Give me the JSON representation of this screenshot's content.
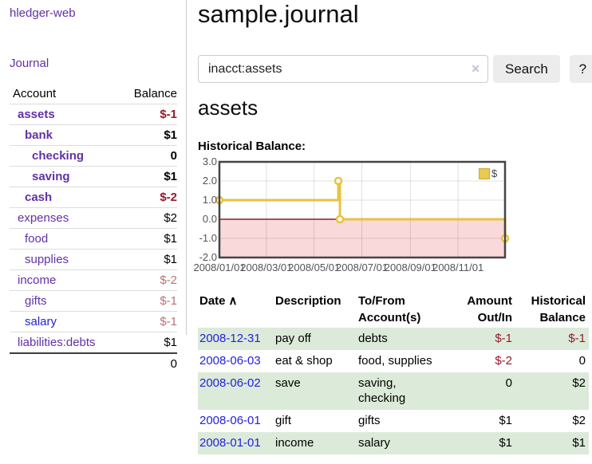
{
  "app": {
    "brand": "hledger-web"
  },
  "nav": {
    "journal": "Journal"
  },
  "sidebar": {
    "accounts": {
      "col_account": "Account",
      "col_balance": "Balance",
      "rows": [
        {
          "name": "assets",
          "balance": "$-1",
          "depth": 1,
          "bold": true,
          "balance_tone": "negative-strong",
          "name_color": "purple"
        },
        {
          "name": "bank",
          "balance": "$1",
          "depth": 2,
          "bold": true,
          "balance_tone": "normal",
          "name_color": "purple"
        },
        {
          "name": "checking",
          "balance": "0",
          "depth": 3,
          "bold": true,
          "balance_tone": "normal",
          "name_color": "purple"
        },
        {
          "name": "saving",
          "balance": "$1",
          "depth": 3,
          "bold": true,
          "balance_tone": "normal",
          "name_color": "purple"
        },
        {
          "name": "cash",
          "balance": "$-2",
          "depth": 2,
          "bold": true,
          "balance_tone": "negative-strong",
          "name_color": "purple"
        },
        {
          "name": "expenses",
          "balance": "$2",
          "depth": 1,
          "bold": false,
          "balance_tone": "normal",
          "name_color": "purple"
        },
        {
          "name": "food",
          "balance": "$1",
          "depth": 2,
          "bold": false,
          "balance_tone": "normal",
          "name_color": "purple"
        },
        {
          "name": "supplies",
          "balance": "$1",
          "depth": 2,
          "bold": false,
          "balance_tone": "normal",
          "name_color": "purple"
        },
        {
          "name": "income",
          "balance": "$-2",
          "depth": 1,
          "bold": false,
          "balance_tone": "negative-muted",
          "name_color": "purple"
        },
        {
          "name": "gifts",
          "balance": "$-1",
          "depth": 2,
          "bold": false,
          "balance_tone": "negative-muted",
          "name_color": "purple"
        },
        {
          "name": "salary",
          "balance": "$-1",
          "depth": 2,
          "bold": false,
          "balance_tone": "negative-muted",
          "name_color": "blue"
        },
        {
          "name": "liabilities:debts",
          "balance": "$1",
          "depth": 1,
          "bold": false,
          "balance_tone": "normal",
          "name_color": "purple"
        }
      ],
      "total": "0"
    }
  },
  "header": {
    "title": "sample.journal"
  },
  "search": {
    "value": "inacct:assets",
    "clear_icon": "✕",
    "search_button": "Search",
    "help_button": "?"
  },
  "account_page": {
    "heading": "assets",
    "section_label": "Historical Balance:"
  },
  "chart_data": {
    "type": "line",
    "title": "Historical Balance",
    "step": true,
    "x_range": [
      "2008-01-01",
      "2008-12-31"
    ],
    "ylim": [
      -2,
      3
    ],
    "ytick_labels": [
      "3.0",
      "2.0",
      "1.0",
      "0.0",
      "-1.0",
      "-2.0"
    ],
    "ytick_values": [
      3,
      2,
      1,
      0,
      -1,
      -2
    ],
    "xticks": [
      {
        "label": "2008/01/01",
        "date": "2008-01-01"
      },
      {
        "label": "2008/03/01",
        "date": "2008-03-01"
      },
      {
        "label": "2008/05/01",
        "date": "2008-05-01"
      },
      {
        "label": "2008/07/01",
        "date": "2008-07-01"
      },
      {
        "label": "2008/09/01",
        "date": "2008-09-01"
      },
      {
        "label": "2008/11/01",
        "date": "2008-11-01"
      }
    ],
    "series": [
      {
        "name": "$",
        "color": "#e9c23f",
        "points": [
          {
            "date": "2008-01-01",
            "value": 1
          },
          {
            "date": "2008-06-01",
            "value": 2
          },
          {
            "date": "2008-06-03",
            "value": 0
          },
          {
            "date": "2008-12-31",
            "value": -1
          }
        ]
      }
    ],
    "legend": {
      "label": "$",
      "position": "top-right"
    },
    "negative_region_color": "#f9d9d9",
    "zero_line_color": "#8b2020",
    "grid": true
  },
  "register": {
    "columns": [
      {
        "label": "Date",
        "sort": "∧"
      },
      {
        "label": "Description"
      },
      {
        "label": "To/From Account(s)"
      },
      {
        "label": "Amount Out/In"
      },
      {
        "label": "Historical Balance"
      }
    ],
    "rows": [
      {
        "date": "2008-12-31",
        "description": "pay off",
        "accounts": [
          "debts"
        ],
        "amount": "$-1",
        "amount_negative": true,
        "balance": "$-1",
        "balance_negative": true
      },
      {
        "date": "2008-06-03",
        "description": "eat & shop",
        "accounts": [
          "food, supplies"
        ],
        "amount": "$-2",
        "amount_negative": true,
        "balance": "0",
        "balance_negative": false
      },
      {
        "date": "2008-06-02",
        "description": "save",
        "accounts": [
          "saving,",
          "checking"
        ],
        "amount": "0",
        "amount_negative": false,
        "balance": "$2",
        "balance_negative": false
      },
      {
        "date": "2008-06-01",
        "description": "gift",
        "accounts": [
          "gifts"
        ],
        "amount": "$1",
        "amount_negative": false,
        "balance": "$2",
        "balance_negative": false
      },
      {
        "date": "2008-01-01",
        "description": "income",
        "accounts": [
          "salary"
        ],
        "amount": "$1",
        "amount_negative": false,
        "balance": "$1",
        "balance_negative": false
      }
    ]
  },
  "colors": {
    "purple_link": "#6131a5",
    "blue_link": "#2222dd",
    "negative_strong": "#96182e",
    "negative_muted": "#bf7076",
    "row_shade_green": "#dcead9",
    "chart_line_gold": "#e9c23f"
  }
}
